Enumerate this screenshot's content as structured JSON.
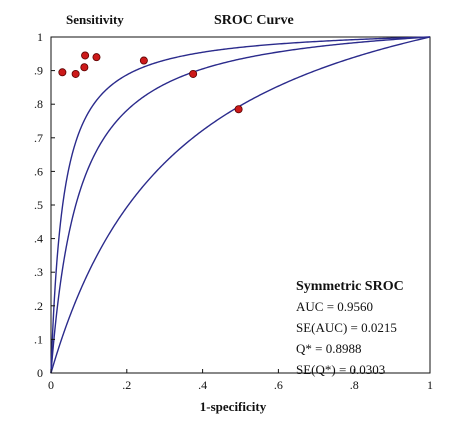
{
  "chart_data": {
    "type": "scatter",
    "title": "SROC Curve",
    "ylabel": "Sensitivity",
    "xlabel": "1-specificity",
    "xlim": [
      0,
      1
    ],
    "ylim": [
      0,
      1
    ],
    "x_ticks": [
      "0",
      ".2",
      ".4",
      ".6",
      ".8",
      "1"
    ],
    "y_ticks": [
      "0",
      ".1",
      ".2",
      ".3",
      ".4",
      ".5",
      ".6",
      ".7",
      ".8",
      ".9",
      "1"
    ],
    "grid": false,
    "points": [
      {
        "x": 0.03,
        "y": 0.895
      },
      {
        "x": 0.065,
        "y": 0.89
      },
      {
        "x": 0.088,
        "y": 0.91
      },
      {
        "x": 0.09,
        "y": 0.945
      },
      {
        "x": 0.12,
        "y": 0.94
      },
      {
        "x": 0.245,
        "y": 0.93
      },
      {
        "x": 0.375,
        "y": 0.89
      },
      {
        "x": 0.495,
        "y": 0.785
      }
    ],
    "curves": [
      {
        "role": "upper-confidence-bound",
        "log_odds_offset": 3.45
      },
      {
        "role": "sroc",
        "log_odds_offset": 2.66
      },
      {
        "role": "lower-confidence-bound",
        "log_odds_offset": 1.36
      }
    ],
    "point_color": "#cc1a1a",
    "curve_color": "#2b2b8c",
    "stats": {
      "title": "Symmetric SROC",
      "lines": [
        "AUC = 0.9560",
        "SE(AUC) = 0.0215",
        "Q* = 0.8988",
        "SE(Q*) = 0.0303"
      ]
    }
  }
}
